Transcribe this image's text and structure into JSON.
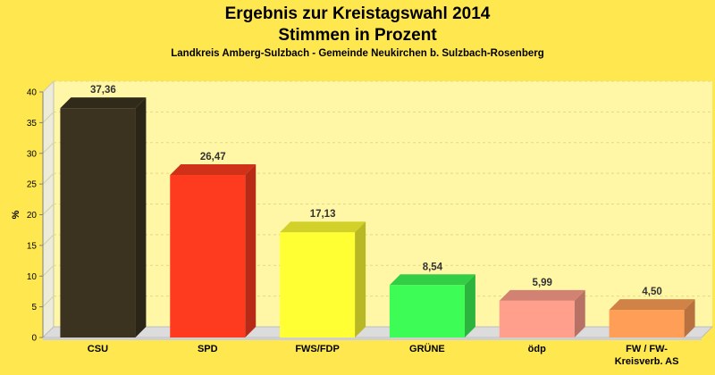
{
  "chart_data": {
    "type": "bar",
    "title": [
      "Ergebnis zur Kreistagswahl 2014",
      "Stimmen in Prozent"
    ],
    "subtitle": "Landkreis Amberg-Sulzbach - Gemeinde Neukirchen b. Sulzbach-Rosenberg",
    "ylabel": "%",
    "xlabel": "",
    "ylim": [
      0,
      40
    ],
    "yticks": [
      0,
      5,
      10,
      15,
      20,
      25,
      30,
      35,
      40
    ],
    "categories": [
      [
        "CSU"
      ],
      [
        "SPD"
      ],
      [
        "FWS/FDP"
      ],
      [
        "GRÜNE"
      ],
      [
        "ödp"
      ],
      [
        "FW / FW-",
        "Kreisverb. AS"
      ]
    ],
    "values": [
      37.36,
      26.47,
      17.13,
      8.54,
      5.99,
      4.5
    ],
    "value_labels": [
      "37,36",
      "26,47",
      "17,13",
      "8,54",
      "5,99",
      "4,50"
    ],
    "colors": [
      "#3b3320",
      "#ff3b1f",
      "#ffff33",
      "#3dfc55",
      "#ff9f8c",
      "#ff9e57"
    ],
    "grid": true,
    "style": "3d"
  }
}
